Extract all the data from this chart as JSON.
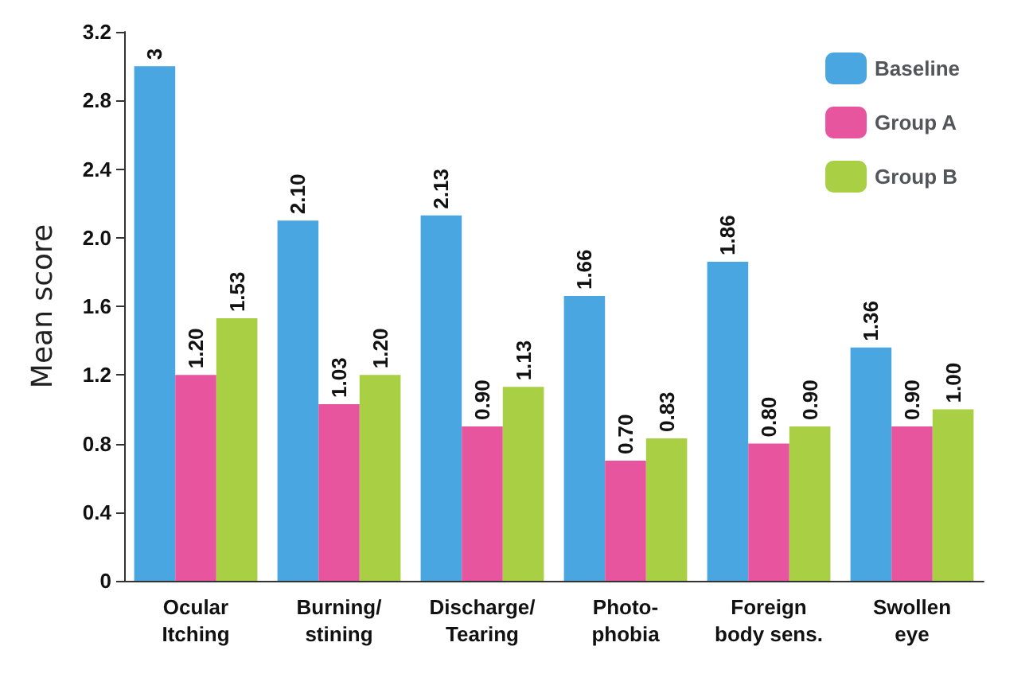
{
  "chart_data": {
    "type": "bar",
    "ylabel": "Mean score",
    "categories": [
      "Ocular\nItching",
      "Burning/\nstining",
      "Discharge/\nTearing",
      "Photo-\nphobia",
      "Foreign\nbody sens.",
      "Swollen\neye"
    ],
    "series": [
      {
        "name": "Baseline",
        "color": "#4aa6e0",
        "values": [
          3,
          2.1,
          2.13,
          1.66,
          1.86,
          1.36
        ],
        "value_labels": [
          "3",
          "2.10",
          "2.13",
          "1.66",
          "1.86",
          "1.36"
        ]
      },
      {
        "name": "Group A",
        "color": "#e8559f",
        "values": [
          1.2,
          1.03,
          0.9,
          0.7,
          0.8,
          0.9
        ],
        "value_labels": [
          "1.20",
          "1.03",
          "0.90",
          "0.70",
          "0.80",
          "0.90"
        ]
      },
      {
        "name": "Group B",
        "color": "#a9cf45",
        "values": [
          1.53,
          1.2,
          1.13,
          0.83,
          0.9,
          1.0
        ],
        "value_labels": [
          "1.53",
          "1.20",
          "1.13",
          "0.83",
          "0.90",
          "1.00"
        ]
      }
    ],
    "ylim": [
      0,
      3.2
    ],
    "yticks": [
      0,
      0.4,
      0.8,
      1.2,
      1.6,
      {
        "value": 2,
        "label": "2.0"
      },
      2.4,
      2.8,
      3.2
    ],
    "grid": false,
    "legend": "top right"
  }
}
